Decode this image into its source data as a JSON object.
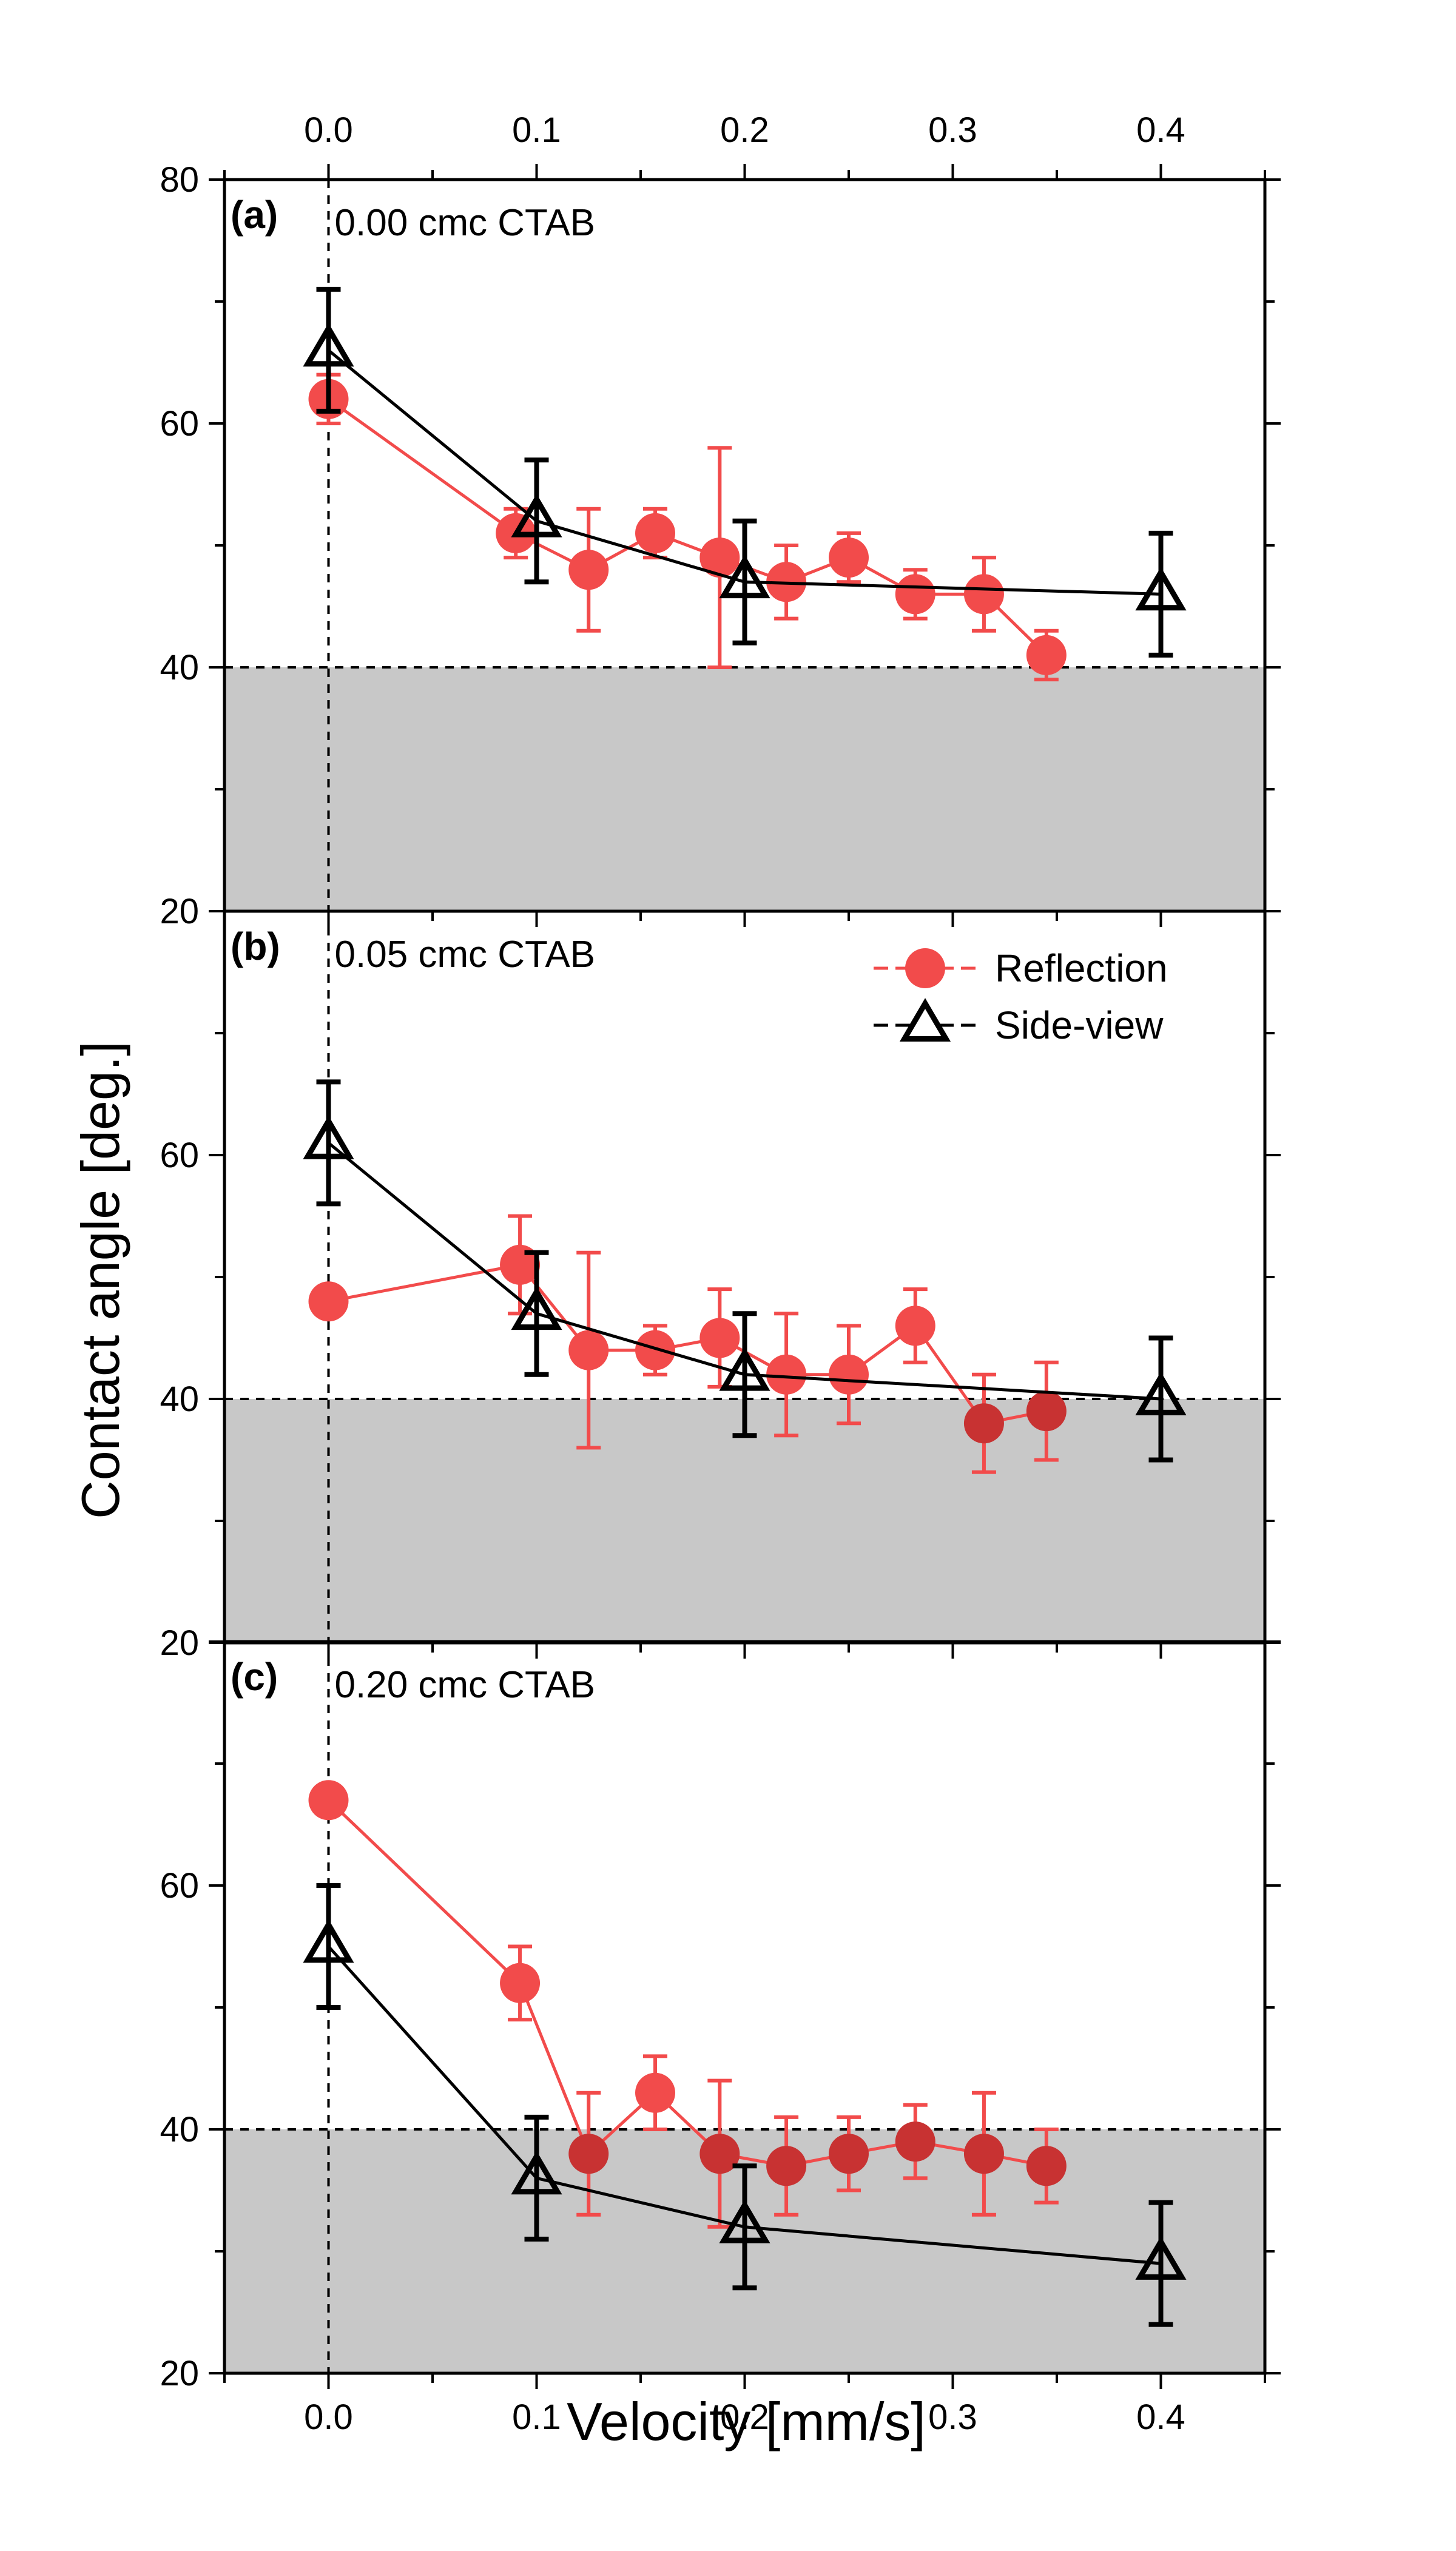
{
  "chart_data": {
    "type": "scatter",
    "xlabel": "Velocity [mm/s]",
    "ylabel": "Contact angle [deg.]",
    "xlim": [
      -0.05,
      0.45
    ],
    "x_ticks": [
      0.0,
      0.1,
      0.2,
      0.3,
      0.4
    ],
    "x_tick_labels": [
      "0.0",
      "0.1",
      "0.2",
      "0.3",
      "0.4"
    ],
    "x_tick_labels_top": [
      "0.0",
      "0.1",
      "0.2",
      "0.3",
      "0.4"
    ],
    "grid": false,
    "shaded_region_below": 40,
    "reference_lines": {
      "horizontal_y": 40,
      "vertical_x": 0.0
    },
    "legend": {
      "placement": "top-right of panel (b)",
      "entries": [
        "Reflection",
        "Side-view"
      ]
    },
    "colors": {
      "reflection": "#f24b4b",
      "reflection_in_shaded": "#c83232",
      "side_view": "#000000",
      "shaded": "#c8c8c8"
    },
    "panels": [
      {
        "tag": "(a)",
        "note": "0.00 cmc CTAB",
        "ylim": [
          20,
          80
        ],
        "y_ticks": [
          20,
          40,
          60,
          80
        ],
        "y_tick_labels": [
          "20",
          "40",
          "60",
          "80"
        ],
        "series": [
          {
            "name": "Reflection",
            "marker": "circle",
            "x": [
              0.0,
              0.09,
              0.125,
              0.157,
              0.188,
              0.22,
              0.25,
              0.282,
              0.315,
              0.345
            ],
            "y": [
              62,
              51,
              48,
              51,
              49,
              47,
              49,
              46,
              46,
              41
            ],
            "err": [
              2,
              2,
              5,
              2,
              9,
              3,
              2,
              2,
              3,
              2
            ]
          },
          {
            "name": "Side-view",
            "marker": "triangle",
            "x": [
              0.0,
              0.1,
              0.2,
              0.4
            ],
            "y": [
              66,
              52,
              47,
              46
            ],
            "err": [
              5,
              5,
              5,
              5
            ]
          }
        ]
      },
      {
        "tag": "(b)",
        "note": "0.05 cmc CTAB",
        "ylim": [
          20,
          80
        ],
        "y_ticks": [
          20,
          40,
          60
        ],
        "y_tick_labels": [
          "20",
          "40",
          "60"
        ],
        "series": [
          {
            "name": "Reflection",
            "marker": "circle",
            "x": [
              0.0,
              0.092,
              0.125,
              0.157,
              0.188,
              0.22,
              0.25,
              0.282,
              0.315,
              0.345
            ],
            "y": [
              48,
              51,
              44,
              44,
              45,
              42,
              42,
              46,
              38,
              39
            ],
            "err": [
              0,
              4,
              8,
              2,
              4,
              5,
              4,
              3,
              4,
              4
            ]
          },
          {
            "name": "Side-view",
            "marker": "triangle",
            "x": [
              0.0,
              0.1,
              0.2,
              0.4
            ],
            "y": [
              61,
              47,
              42,
              40
            ],
            "err": [
              5,
              5,
              5,
              5
            ]
          }
        ]
      },
      {
        "tag": "(c)",
        "note": "0.20 cmc CTAB",
        "ylim": [
          20,
          80
        ],
        "y_ticks": [
          20,
          40,
          60
        ],
        "y_tick_labels": [
          "20",
          "40",
          "60"
        ],
        "series": [
          {
            "name": "Reflection",
            "marker": "circle",
            "x": [
              0.0,
              0.092,
              0.125,
              0.157,
              0.188,
              0.22,
              0.25,
              0.282,
              0.315,
              0.345
            ],
            "y": [
              67,
              52,
              38,
              43,
              38,
              37,
              38,
              39,
              38,
              37
            ],
            "err": [
              0,
              3,
              5,
              3,
              6,
              4,
              3,
              3,
              5,
              3
            ]
          },
          {
            "name": "Side-view",
            "marker": "triangle",
            "x": [
              0.0,
              0.1,
              0.2,
              0.4
            ],
            "y": [
              55,
              36,
              32,
              29
            ],
            "err": [
              5,
              5,
              5,
              5
            ]
          }
        ]
      }
    ]
  }
}
